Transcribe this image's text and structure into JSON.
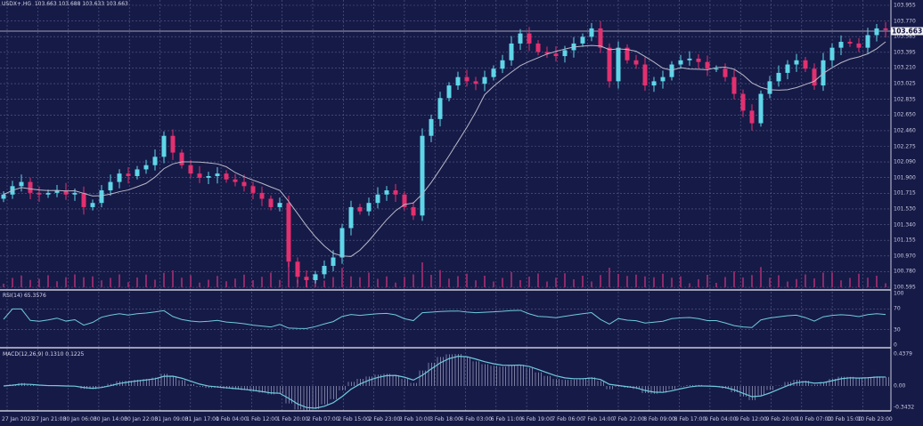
{
  "symbol_header": {
    "symbol": "USDX+.HG",
    "open": "103.663",
    "high": "103.688",
    "low": "103.633",
    "close": "103.663"
  },
  "colors": {
    "background": "#161a47",
    "grid": "#5a5f8a",
    "bull": "#5fd6e8",
    "bear": "#e3306f",
    "ma": "#b8b8c8",
    "indicator_line": "#6fcadd",
    "panel_border": "#c8c9d8"
  },
  "price_axis": [
    "103.955",
    "103.770",
    "103.585",
    "103.395",
    "103.210",
    "103.025",
    "102.835",
    "102.650",
    "102.460",
    "102.275",
    "102.090",
    "101.900",
    "101.715",
    "101.530",
    "101.340",
    "101.155",
    "100.970",
    "100.780",
    "100.595"
  ],
  "current_price": "103.663",
  "rsi": {
    "label": "RSI(14) 65.3576",
    "axis": [
      "100",
      "70",
      "30",
      "0"
    ]
  },
  "macd": {
    "label": "MACD(12,26,9) 0.1310 0.1225",
    "axis": [
      "0.4379",
      "0.00",
      "-0.3432"
    ]
  },
  "time_axis": [
    "27 Jan 2023",
    "27 Jan 21:00",
    "30 Jan 06:00",
    "30 Jan 14:00",
    "30 Jan 22:00",
    "31 Jan 09:00",
    "31 Jan 17:00",
    "1 Feb 04:00",
    "1 Feb 12:00",
    "1 Feb 20:00",
    "2 Feb 07:00",
    "2 Feb 15:00",
    "2 Feb 23:00",
    "3 Feb 10:00",
    "3 Feb 18:00",
    "6 Feb 03:00",
    "6 Feb 11:00",
    "6 Feb 19:00",
    "7 Feb 06:00",
    "7 Feb 14:00",
    "7 Feb 22:00",
    "8 Feb 09:00",
    "8 Feb 17:00",
    "9 Feb 04:00",
    "9 Feb 12:00",
    "9 Feb 20:00",
    "10 Feb 07:00",
    "10 Feb 15:00",
    "10 Feb 23:00"
  ],
  "chart_data": {
    "type": "candlestick",
    "ylim": [
      100.595,
      103.955
    ],
    "closes": [
      101.7,
      101.8,
      101.85,
      101.72,
      101.7,
      101.72,
      101.75,
      101.7,
      101.72,
      101.55,
      101.6,
      101.75,
      101.85,
      101.95,
      101.92,
      102.0,
      102.05,
      102.15,
      102.4,
      102.2,
      102.05,
      101.95,
      101.9,
      101.92,
      101.95,
      101.88,
      101.85,
      101.8,
      101.72,
      101.65,
      101.55,
      101.6,
      100.9,
      100.72,
      100.68,
      100.75,
      100.85,
      100.95,
      101.3,
      101.55,
      101.5,
      101.6,
      101.7,
      101.75,
      101.7,
      101.55,
      101.45,
      102.4,
      102.6,
      102.85,
      103.0,
      103.1,
      103.05,
      103.02,
      103.1,
      103.2,
      103.3,
      103.5,
      103.62,
      103.5,
      103.4,
      103.38,
      103.35,
      103.42,
      103.5,
      103.58,
      103.68,
      103.45,
      103.05,
      103.45,
      103.3,
      103.25,
      103.0,
      103.05,
      103.1,
      103.25,
      103.3,
      103.32,
      103.28,
      103.2,
      103.2,
      103.1,
      102.9,
      102.7,
      102.55,
      102.9,
      103.05,
      103.15,
      103.25,
      103.3,
      103.2,
      103.0,
      103.3,
      103.45,
      103.52,
      103.5,
      103.45,
      103.6,
      103.68,
      103.66
    ]
  }
}
